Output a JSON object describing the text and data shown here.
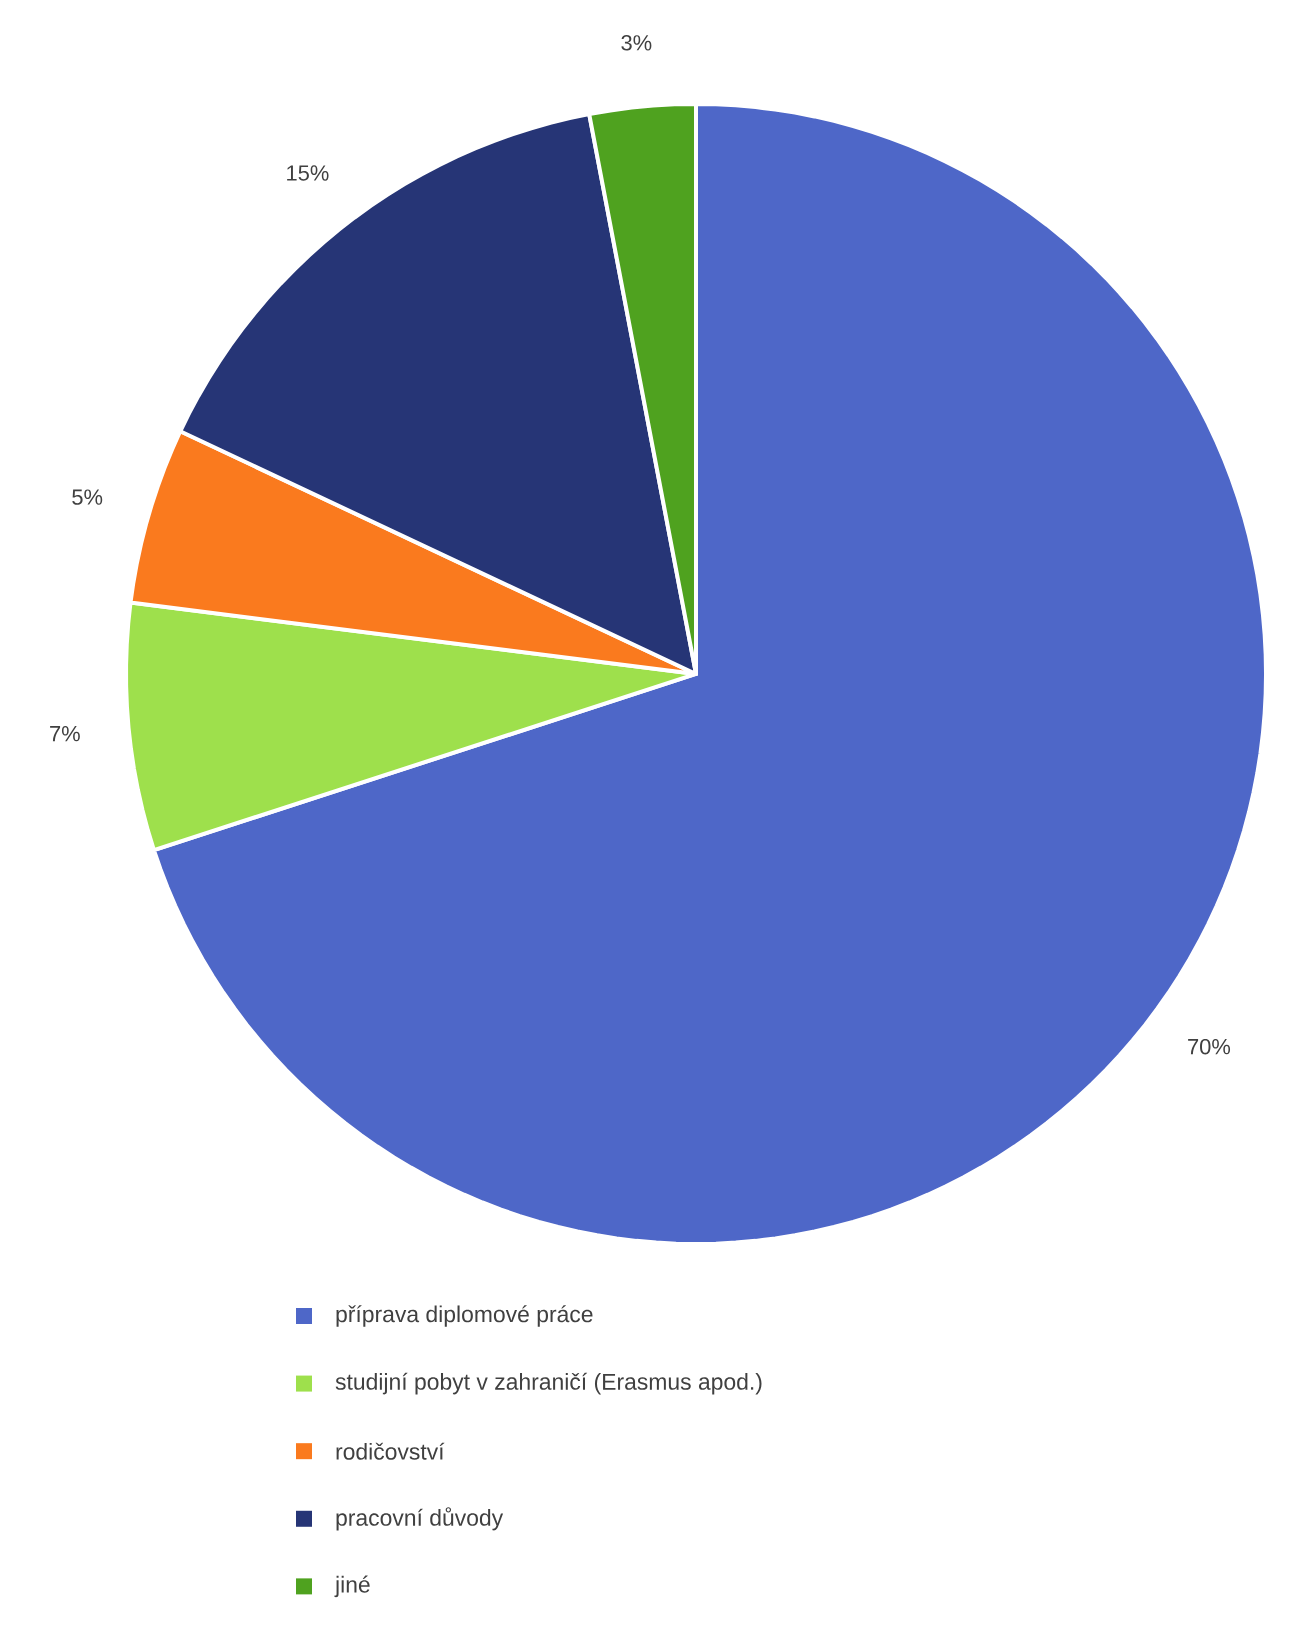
{
  "chart_data": {
    "type": "pie",
    "categories": [
      "příprava diplomové práce",
      "studijní pobyt v zahraničí (Erasmus apod.)",
      "rodičovství",
      "pracovní důvody",
      "jiné"
    ],
    "values": [
      70,
      7,
      5,
      15,
      3
    ],
    "value_labels": [
      "70%",
      "7%",
      "5%",
      "15%",
      "3%"
    ],
    "colors": [
      "#4e67c8",
      "#9ee04c",
      "#fa7a1e",
      "#263576",
      "#4fa21f"
    ],
    "legend": "bottom"
  }
}
